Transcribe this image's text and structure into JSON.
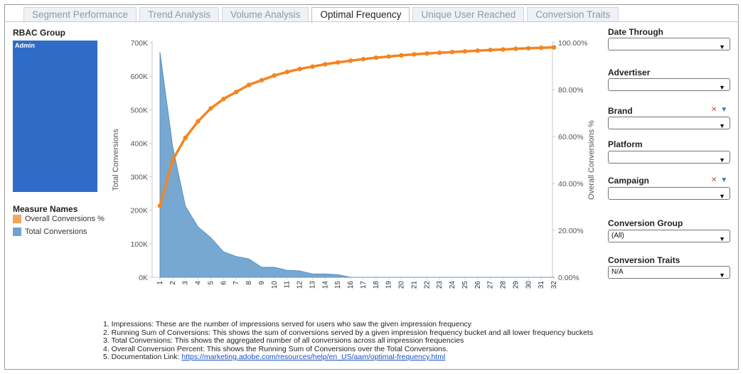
{
  "tabs": [
    {
      "label": "Segment Performance",
      "active": false
    },
    {
      "label": "Trend Analysis",
      "active": false
    },
    {
      "label": "Volume Analysis",
      "active": false
    },
    {
      "label": "Optimal Frequency",
      "active": true
    },
    {
      "label": "Unique User Reached",
      "active": false
    },
    {
      "label": "Conversion Traits",
      "active": false
    }
  ],
  "rbac": {
    "title": "RBAC Group",
    "item": "Admin",
    "color": "#2e6cc8"
  },
  "legend": {
    "title": "Measure Names",
    "items": [
      {
        "label": "Overall Conversions %",
        "color": "#f5a65b"
      },
      {
        "label": "Total Conversions",
        "color": "#6fa3cf"
      }
    ]
  },
  "chart_data": {
    "type": "area+line",
    "x": [
      1,
      2,
      3,
      4,
      5,
      6,
      7,
      8,
      9,
      10,
      11,
      12,
      13,
      14,
      15,
      16,
      17,
      18,
      19,
      20,
      21,
      22,
      23,
      24,
      25,
      26,
      27,
      28,
      29,
      30,
      31,
      32
    ],
    "x_tick_labels": [
      "1",
      "2",
      "3",
      "4",
      "5",
      "6",
      "7",
      "8",
      "9",
      "10",
      "11",
      "12",
      "13",
      "14",
      "15",
      "16",
      "17",
      "18",
      "19",
      "20",
      "21",
      "22",
      "23",
      "24",
      "25",
      "26",
      "27",
      "28",
      "29",
      "30",
      "31",
      "32"
    ],
    "left_axis": {
      "label": "Total Conversions",
      "ylim": [
        0,
        700000
      ],
      "ticks": [
        "0K",
        "100K",
        "200K",
        "300K",
        "400K",
        "500K",
        "600K",
        "700K"
      ]
    },
    "right_axis": {
      "label": "Overall Conversions %",
      "ylim": [
        0,
        100
      ],
      "ticks": [
        "0.00%",
        "20.00%",
        "40.00%",
        "60.00%",
        "80.00%",
        "100.00%"
      ]
    },
    "series": [
      {
        "name": "Total Conversions",
        "axis": "left",
        "color": "#6fa3cf",
        "values": [
          672000,
          390000,
          212000,
          150000,
          118000,
          76000,
          62000,
          55000,
          30000,
          30000,
          21000,
          19000,
          10000,
          10000,
          8000,
          0,
          0,
          0,
          0,
          0,
          0,
          0,
          0,
          0,
          0,
          0,
          0,
          0,
          0,
          0,
          0,
          0
        ]
      },
      {
        "name": "Overall Conversions %",
        "axis": "right",
        "color": "#f5841f",
        "values": [
          30.5,
          50.0,
          59.5,
          66.5,
          72.0,
          76.0,
          79.0,
          82.0,
          84.0,
          86.0,
          87.5,
          88.8,
          89.8,
          90.8,
          91.6,
          92.3,
          93.0,
          93.6,
          94.1,
          94.6,
          95.0,
          95.4,
          95.7,
          96.0,
          96.3,
          96.6,
          96.9,
          97.1,
          97.4,
          97.6,
          97.8,
          98.0
        ]
      }
    ]
  },
  "notes": [
    "1. Impressions: These are the number of impressions served for users who saw the given impression frequency",
    "2. Running Sum of Conversions: This shows the sum of conversions served by a given impression frequency bucket and all lower frequency buckets",
    "3. Total Conversions: This shows the aggregated number of all conversions across all impression frequencies",
    "4. Overall Conversion Percent: This shows the Running Sum of Conversions over the Total Conversions."
  ],
  "doc_link": {
    "prefix": "5. Documentation Link: ",
    "text": "https://marketing.adobe.com/resources/help/en_US/aam/optimal-frequency.html"
  },
  "filters": [
    {
      "label": "Date Through",
      "value": "",
      "icons": false
    },
    {
      "label": "Advertiser",
      "value": "",
      "icons": false
    },
    {
      "label": "Brand",
      "value": "",
      "icons": true
    },
    {
      "label": "Platform",
      "value": "",
      "icons": false
    },
    {
      "label": "Campaign",
      "value": "",
      "icons": true
    },
    {
      "label": "Conversion Group",
      "value": "(All)",
      "icons": false
    },
    {
      "label": "Conversion Traits",
      "value": "N/A",
      "icons": false
    }
  ],
  "icons": {
    "dropdown": "chevron-down-icon",
    "clear_filter": "clear-filter-icon",
    "menu": "menu-arrow-icon"
  }
}
